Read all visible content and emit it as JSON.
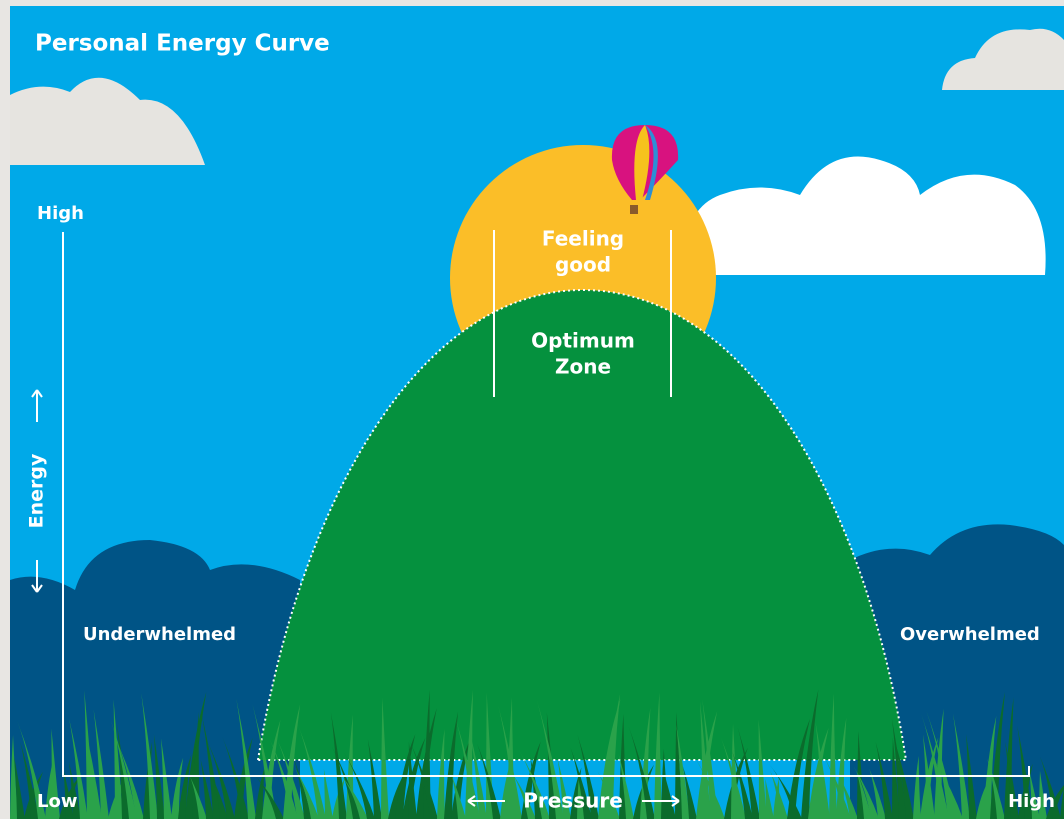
{
  "title": "Personal Energy Curve",
  "y_axis": {
    "high": "High",
    "label": "Energy"
  },
  "x_axis": {
    "low": "Low",
    "label": "Pressure",
    "high": "High"
  },
  "zones": {
    "left": "Underwhelmed",
    "right": "Overwhelmed",
    "top": [
      "Feeling",
      "good"
    ],
    "middle": [
      "Optimum",
      "Zone"
    ]
  }
}
